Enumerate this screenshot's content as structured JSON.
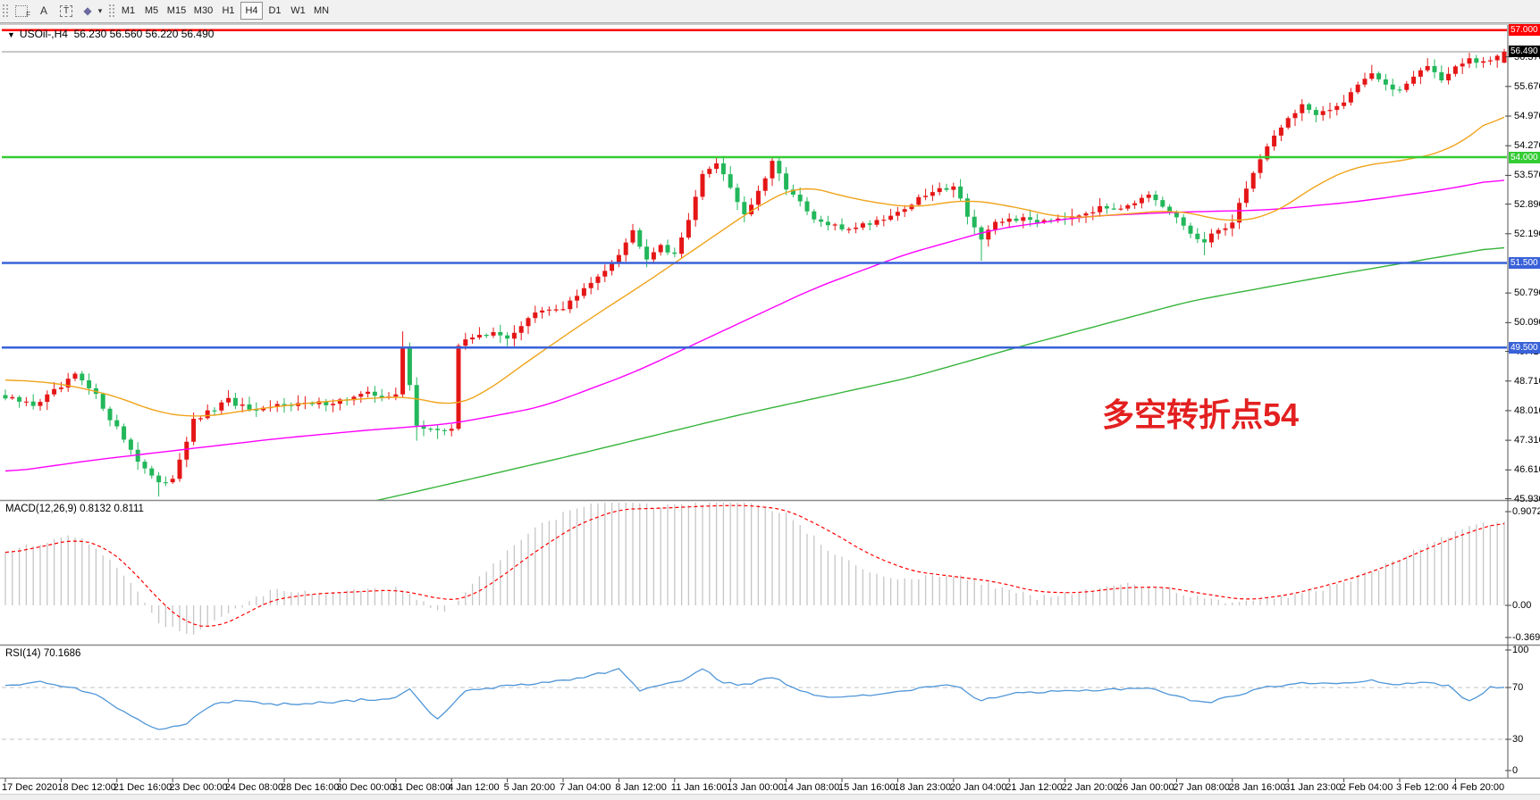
{
  "toolbar": {
    "icons": [
      {
        "name": "snap-grid-icon",
        "label": "F"
      },
      {
        "name": "text-a-icon",
        "label": "A"
      },
      {
        "name": "text-box-icon",
        "label": "T"
      },
      {
        "name": "draw-objects-icon",
        "label": "◆"
      }
    ],
    "caret": "▾",
    "timeframes": [
      "M1",
      "M5",
      "M15",
      "M30",
      "H1",
      "H4",
      "D1",
      "W1",
      "MN"
    ],
    "active_timeframe": "H4"
  },
  "header": {
    "symbol_line": "USOil-,H4  56.230 56.560 56.220 56.490",
    "expander": "▼"
  },
  "annotation": {
    "text": "多空转折点54",
    "color": "#e32020"
  },
  "colors": {
    "up": "#e51616",
    "down": "#22b75a",
    "ma_fast": "#f0a31b",
    "ma_mid": "#ff00ff",
    "ma_slow": "#35b43a",
    "macd_hist": "#c6c6c6",
    "macd_signal": "#ff0000",
    "rsi_line": "#4f96d8",
    "level_dash": "#c3c3c3",
    "bid_line": "#919191",
    "border": "#8a8a8a"
  },
  "price_axis": {
    "ticks": [
      {
        "text": "56.370",
        "value": 56.37
      },
      {
        "text": "55.670",
        "value": 55.67
      },
      {
        "text": "54.970",
        "value": 54.97
      },
      {
        "text": "54.270",
        "value": 54.27
      },
      {
        "text": "53.570",
        "value": 53.57
      },
      {
        "text": "52.890",
        "value": 52.89
      },
      {
        "text": "52.190",
        "value": 52.19
      },
      {
        "text": "50.790",
        "value": 50.79
      },
      {
        "text": "50.090",
        "value": 50.09
      },
      {
        "text": "49.410",
        "value": 49.41
      },
      {
        "text": "48.710",
        "value": 48.71
      },
      {
        "text": "48.010",
        "value": 48.01
      },
      {
        "text": "47.310",
        "value": 47.31
      },
      {
        "text": "46.610",
        "value": 46.61
      },
      {
        "text": "45.930",
        "value": 45.93
      }
    ],
    "badges": [
      {
        "text": "57.000",
        "value": 57.0,
        "bg": "#ff0000"
      },
      {
        "text": "56.490",
        "value": 56.49,
        "bg": "#000000"
      },
      {
        "text": "54.000",
        "value": 54.0,
        "bg": "#33cc33"
      },
      {
        "text": "51.500",
        "value": 51.5,
        "bg": "#3a62d8"
      },
      {
        "text": "49.500",
        "value": 49.5,
        "bg": "#3a62d8"
      }
    ]
  },
  "hlines": [
    {
      "value": 57.0,
      "color": "#ff0000",
      "width": 2.5
    },
    {
      "value": 54.0,
      "color": "#33cc33",
      "width": 2.5
    },
    {
      "value": 51.5,
      "color": "#3a62d8",
      "width": 2.5
    },
    {
      "value": 49.5,
      "color": "#3a62d8",
      "width": 2.5
    }
  ],
  "bid_price": 56.49,
  "macd": {
    "label": "MACD(12,26,9) 0.8132 0.8111",
    "axis_ticks": [
      {
        "text": "0.9072",
        "value": 0.9072
      },
      {
        "text": "0.00",
        "value": 0.0
      },
      {
        "text": "-0.369",
        "value": -0.369
      }
    ]
  },
  "rsi": {
    "label": "RSI(14) 70.1686",
    "axis_ticks": [
      {
        "text": "100",
        "value": 100
      },
      {
        "text": "70",
        "value": 70
      },
      {
        "text": "30",
        "value": 30
      },
      {
        "text": "0",
        "value": 0
      }
    ],
    "levels": [
      70,
      30
    ]
  },
  "time_axis": [
    "17 Dec 2020",
    "18 Dec 12:00",
    "21 Dec 16:00",
    "23 Dec 00:00",
    "24 Dec 08:00",
    "28 Dec 16:00",
    "30 Dec 00:00",
    "31 Dec 08:00",
    "4 Jan 12:00",
    "5 Jan 20:00",
    "7 Jan 04:00",
    "8 Jan 12:00",
    "11 Jan 16:00",
    "13 Jan 00:00",
    "14 Jan 08:00",
    "15 Jan 16:00",
    "18 Jan 23:00",
    "20 Jan 04:00",
    "21 Jan 12:00",
    "22 Jan 20:00",
    "26 Jan 00:00",
    "27 Jan 08:00",
    "28 Jan 16:00",
    "31 Jan 23:00",
    "2 Feb 04:00",
    "3 Feb 12:00",
    "4 Feb 20:00"
  ],
  "chart_data": {
    "type": "candlestick",
    "symbol": "USOil",
    "timeframe": "H4",
    "bars": 216,
    "bars_per_time_tick": 8,
    "current_bar": {
      "open": 56.23,
      "high": 56.56,
      "low": 56.22,
      "close": 56.49
    },
    "price_range_visible": [
      45.93,
      57.0
    ],
    "price_path": [
      [
        0,
        48.3
      ],
      [
        4,
        48.15
      ],
      [
        8,
        48.55
      ],
      [
        10,
        48.85
      ],
      [
        13,
        48.35
      ],
      [
        16,
        47.6
      ],
      [
        19,
        46.85
      ],
      [
        22,
        46.25
      ],
      [
        24,
        46.45
      ],
      [
        27,
        47.75
      ],
      [
        30,
        48.05
      ],
      [
        32,
        48.25
      ],
      [
        36,
        47.95
      ],
      [
        40,
        48.2
      ],
      [
        44,
        48.15
      ],
      [
        48,
        48.25
      ],
      [
        52,
        48.4
      ],
      [
        56,
        48.35
      ],
      [
        57,
        49.5
      ],
      [
        59,
        47.7
      ],
      [
        62,
        47.5
      ],
      [
        64,
        47.6
      ],
      [
        65,
        49.55
      ],
      [
        68,
        49.85
      ],
      [
        72,
        49.75
      ],
      [
        76,
        50.3
      ],
      [
        80,
        50.45
      ],
      [
        84,
        51.0
      ],
      [
        88,
        51.75
      ],
      [
        90,
        52.25
      ],
      [
        92,
        51.65
      ],
      [
        94,
        51.95
      ],
      [
        96,
        51.65
      ],
      [
        97,
        52.1
      ],
      [
        100,
        53.55
      ],
      [
        102,
        53.9
      ],
      [
        104,
        53.3
      ],
      [
        106,
        52.65
      ],
      [
        108,
        53.15
      ],
      [
        110,
        53.85
      ],
      [
        112,
        53.3
      ],
      [
        116,
        52.5
      ],
      [
        120,
        52.3
      ],
      [
        124,
        52.45
      ],
      [
        128,
        52.7
      ],
      [
        132,
        53.1
      ],
      [
        136,
        53.35
      ],
      [
        138,
        52.65
      ],
      [
        140,
        52.05
      ],
      [
        142,
        52.4
      ],
      [
        144,
        52.55
      ],
      [
        148,
        52.5
      ],
      [
        152,
        52.6
      ],
      [
        156,
        52.75
      ],
      [
        160,
        52.85
      ],
      [
        164,
        53.05
      ],
      [
        168,
        52.55
      ],
      [
        170,
        52.2
      ],
      [
        172,
        51.95
      ],
      [
        174,
        52.3
      ],
      [
        176,
        52.45
      ],
      [
        178,
        53.3
      ],
      [
        180,
        53.95
      ],
      [
        182,
        54.55
      ],
      [
        184,
        54.9
      ],
      [
        186,
        55.25
      ],
      [
        188,
        54.95
      ],
      [
        190,
        55.1
      ],
      [
        192,
        55.35
      ],
      [
        194,
        55.75
      ],
      [
        196,
        56.0
      ],
      [
        198,
        55.65
      ],
      [
        200,
        55.6
      ],
      [
        202,
        55.95
      ],
      [
        204,
        56.15
      ],
      [
        206,
        55.85
      ],
      [
        208,
        56.1
      ],
      [
        210,
        56.3
      ],
      [
        212,
        56.2
      ],
      [
        215,
        56.49
      ]
    ],
    "low_overrides": {
      "22": 45.98,
      "59": 47.3,
      "62": 47.34,
      "140": 51.55,
      "172": 51.68
    },
    "high_overrides": {
      "57": 49.88,
      "90": 52.42,
      "102": 54.0,
      "110": 53.99,
      "196": 56.18
    },
    "ma_fast_orange": [
      [
        0,
        48.75
      ],
      [
        8,
        48.65
      ],
      [
        16,
        48.35
      ],
      [
        22,
        47.95
      ],
      [
        28,
        47.85
      ],
      [
        36,
        48.05
      ],
      [
        44,
        48.2
      ],
      [
        52,
        48.3
      ],
      [
        58,
        48.35
      ],
      [
        64,
        48.1
      ],
      [
        68,
        48.35
      ],
      [
        76,
        49.3
      ],
      [
        84,
        50.2
      ],
      [
        92,
        51.05
      ],
      [
        100,
        51.95
      ],
      [
        108,
        52.85
      ],
      [
        114,
        53.35
      ],
      [
        122,
        53.0
      ],
      [
        130,
        52.8
      ],
      [
        138,
        53.0
      ],
      [
        144,
        52.85
      ],
      [
        152,
        52.55
      ],
      [
        160,
        52.65
      ],
      [
        168,
        52.75
      ],
      [
        176,
        52.45
      ],
      [
        182,
        52.65
      ],
      [
        188,
        53.35
      ],
      [
        194,
        53.8
      ],
      [
        200,
        53.9
      ],
      [
        207,
        54.15
      ],
      [
        211,
        54.6
      ],
      [
        215,
        55.15
      ]
    ],
    "ma_mid_magenta": [
      [
        0,
        46.55
      ],
      [
        13,
        46.85
      ],
      [
        26,
        47.1
      ],
      [
        39,
        47.35
      ],
      [
        52,
        47.55
      ],
      [
        64,
        47.7
      ],
      [
        77,
        48.1
      ],
      [
        90,
        48.9
      ],
      [
        103,
        49.9
      ],
      [
        116,
        50.9
      ],
      [
        129,
        51.7
      ],
      [
        142,
        52.3
      ],
      [
        155,
        52.6
      ],
      [
        168,
        52.7
      ],
      [
        181,
        52.75
      ],
      [
        194,
        52.95
      ],
      [
        207,
        53.25
      ],
      [
        215,
        53.5
      ]
    ],
    "ma_slow_green": [
      [
        48,
        45.7
      ],
      [
        55,
        45.95
      ],
      [
        80,
        46.9
      ],
      [
        105,
        47.9
      ],
      [
        130,
        48.8
      ],
      [
        145,
        49.5
      ],
      [
        170,
        50.6
      ],
      [
        190,
        51.2
      ],
      [
        215,
        51.9
      ]
    ],
    "macd_hist": [
      [
        0,
        0.52
      ],
      [
        6,
        0.62
      ],
      [
        10,
        0.68
      ],
      [
        14,
        0.5
      ],
      [
        18,
        0.2
      ],
      [
        22,
        -0.15
      ],
      [
        26,
        -0.3
      ],
      [
        30,
        -0.15
      ],
      [
        34,
        0.0
      ],
      [
        38,
        0.15
      ],
      [
        44,
        0.12
      ],
      [
        50,
        0.14
      ],
      [
        56,
        0.16
      ],
      [
        60,
        0.02
      ],
      [
        63,
        -0.08
      ],
      [
        66,
        0.12
      ],
      [
        70,
        0.4
      ],
      [
        76,
        0.75
      ],
      [
        82,
        0.95
      ],
      [
        88,
        1.02
      ],
      [
        94,
        0.95
      ],
      [
        100,
        0.98
      ],
      [
        106,
        1.0
      ],
      [
        112,
        0.88
      ],
      [
        118,
        0.55
      ],
      [
        124,
        0.32
      ],
      [
        130,
        0.25
      ],
      [
        136,
        0.3
      ],
      [
        142,
        0.18
      ],
      [
        148,
        0.07
      ],
      [
        154,
        0.13
      ],
      [
        160,
        0.2
      ],
      [
        166,
        0.18
      ],
      [
        172,
        0.05
      ],
      [
        178,
        0.02
      ],
      [
        184,
        0.08
      ],
      [
        190,
        0.18
      ],
      [
        195,
        0.3
      ],
      [
        200,
        0.45
      ],
      [
        205,
        0.62
      ],
      [
        210,
        0.76
      ],
      [
        215,
        0.8132
      ]
    ],
    "macd_signal": [
      [
        0,
        0.5
      ],
      [
        6,
        0.58
      ],
      [
        10,
        0.64
      ],
      [
        14,
        0.58
      ],
      [
        18,
        0.36
      ],
      [
        22,
        0.05
      ],
      [
        26,
        -0.18
      ],
      [
        30,
        -0.22
      ],
      [
        34,
        -0.1
      ],
      [
        38,
        0.05
      ],
      [
        44,
        0.11
      ],
      [
        50,
        0.13
      ],
      [
        56,
        0.15
      ],
      [
        60,
        0.1
      ],
      [
        63,
        0.05
      ],
      [
        66,
        0.06
      ],
      [
        70,
        0.22
      ],
      [
        76,
        0.52
      ],
      [
        82,
        0.78
      ],
      [
        88,
        0.93
      ],
      [
        94,
        0.94
      ],
      [
        100,
        0.96
      ],
      [
        106,
        0.97
      ],
      [
        112,
        0.93
      ],
      [
        118,
        0.73
      ],
      [
        124,
        0.49
      ],
      [
        130,
        0.33
      ],
      [
        136,
        0.28
      ],
      [
        142,
        0.23
      ],
      [
        148,
        0.13
      ],
      [
        154,
        0.12
      ],
      [
        160,
        0.17
      ],
      [
        166,
        0.18
      ],
      [
        172,
        0.11
      ],
      [
        178,
        0.05
      ],
      [
        184,
        0.1
      ],
      [
        190,
        0.2
      ],
      [
        195,
        0.3
      ],
      [
        200,
        0.43
      ],
      [
        205,
        0.58
      ],
      [
        210,
        0.71
      ],
      [
        215,
        0.8111
      ]
    ],
    "rsi_path": [
      [
        0,
        72
      ],
      [
        5,
        74
      ],
      [
        10,
        70
      ],
      [
        14,
        62
      ],
      [
        18,
        48
      ],
      [
        22,
        38
      ],
      [
        26,
        42
      ],
      [
        30,
        58
      ],
      [
        34,
        60
      ],
      [
        38,
        57
      ],
      [
        44,
        58
      ],
      [
        50,
        60
      ],
      [
        56,
        62
      ],
      [
        58,
        68
      ],
      [
        62,
        45
      ],
      [
        66,
        67
      ],
      [
        70,
        70
      ],
      [
        76,
        73
      ],
      [
        82,
        77
      ],
      [
        88,
        84
      ],
      [
        91,
        68
      ],
      [
        94,
        72
      ],
      [
        97,
        75
      ],
      [
        100,
        84
      ],
      [
        103,
        74
      ],
      [
        106,
        72
      ],
      [
        110,
        78
      ],
      [
        113,
        70
      ],
      [
        116,
        65
      ],
      [
        120,
        62
      ],
      [
        124,
        64
      ],
      [
        128,
        67
      ],
      [
        132,
        70
      ],
      [
        136,
        72
      ],
      [
        140,
        60
      ],
      [
        144,
        65
      ],
      [
        148,
        66
      ],
      [
        152,
        67
      ],
      [
        156,
        68
      ],
      [
        160,
        69
      ],
      [
        164,
        70
      ],
      [
        168,
        63
      ],
      [
        172,
        58
      ],
      [
        176,
        63
      ],
      [
        180,
        70
      ],
      [
        184,
        72
      ],
      [
        188,
        74
      ],
      [
        192,
        73
      ],
      [
        196,
        76
      ],
      [
        200,
        72
      ],
      [
        204,
        74
      ],
      [
        207,
        71
      ],
      [
        210,
        59
      ],
      [
        213,
        70
      ],
      [
        215,
        70.17
      ]
    ]
  }
}
